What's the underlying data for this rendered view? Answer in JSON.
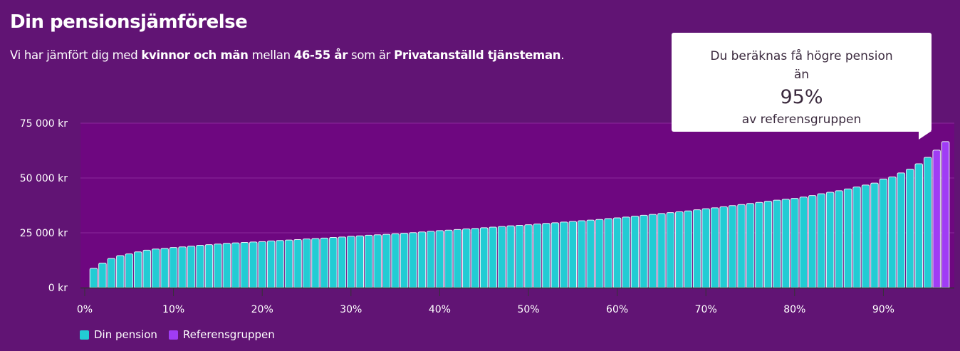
{
  "header": {
    "title": "Din pensionsjämförelse",
    "subtitle_parts": [
      "Vi har jämfört dig med ",
      "kvinnor och män",
      " mellan ",
      "46-55 år",
      " som är ",
      "Privatanställd tjänsteman",
      "."
    ]
  },
  "tooltip": {
    "line1": "Du beräknas få högre pension",
    "line2": "än",
    "percent": "95%",
    "line3": "av referensgruppen"
  },
  "colors": {
    "din_pension": "#22ccd4",
    "referensgruppen": "#a03cf5",
    "plot_bg": "#6e0780",
    "page_bg": "#611474"
  },
  "chart_data": {
    "type": "bar",
    "title": "",
    "xlabel": "",
    "ylabel": "",
    "ylim": [
      0,
      75000
    ],
    "xlim": [
      0,
      98
    ],
    "grid": true,
    "legend_position": "bottom-left",
    "y_ticks": [
      {
        "value": 0,
        "label": "0 kr"
      },
      {
        "value": 25000,
        "label": "25 000 kr"
      },
      {
        "value": 50000,
        "label": "50 000 kr"
      },
      {
        "value": 75000,
        "label": "75 000 kr"
      }
    ],
    "x_ticks": [
      {
        "value": 0,
        "label": "0%"
      },
      {
        "value": 10,
        "label": "10%"
      },
      {
        "value": 20,
        "label": "20%"
      },
      {
        "value": 30,
        "label": "30%"
      },
      {
        "value": 40,
        "label": "40%"
      },
      {
        "value": 50,
        "label": "50%"
      },
      {
        "value": 60,
        "label": "60%"
      },
      {
        "value": 70,
        "label": "70%"
      },
      {
        "value": 80,
        "label": "80%"
      },
      {
        "value": 90,
        "label": "90%"
      }
    ],
    "series": [
      {
        "name": "Din pension",
        "color": "#22ccd4",
        "x_start": 1,
        "values": [
          8800,
          11200,
          13300,
          14600,
          15400,
          16300,
          17100,
          17600,
          17900,
          18300,
          18600,
          18900,
          19300,
          19600,
          19900,
          20200,
          20400,
          20600,
          20800,
          21000,
          21300,
          21500,
          21700,
          21900,
          22200,
          22400,
          22600,
          22900,
          23100,
          23400,
          23600,
          23900,
          24100,
          24300,
          24600,
          24800,
          25100,
          25400,
          25700,
          26000,
          26200,
          26500,
          26800,
          27000,
          27300,
          27600,
          27900,
          28200,
          28400,
          28700,
          29000,
          29300,
          29600,
          29900,
          30200,
          30500,
          30800,
          31100,
          31500,
          31800,
          32200,
          32600,
          33000,
          33400,
          33800,
          34200,
          34600,
          35000,
          35500,
          36000,
          36400,
          36900,
          37400,
          37900,
          38400,
          38900,
          39400,
          39900,
          40300,
          40700,
          41300,
          42000,
          42800,
          43500,
          44200,
          45000,
          45900,
          46800,
          47700,
          49500,
          50500,
          52300,
          54000,
          56500,
          59400
        ]
      },
      {
        "name": "Referensgruppen",
        "color": "#a03cf5",
        "x_start": 96,
        "values": [
          62700,
          66600
        ]
      }
    ]
  }
}
